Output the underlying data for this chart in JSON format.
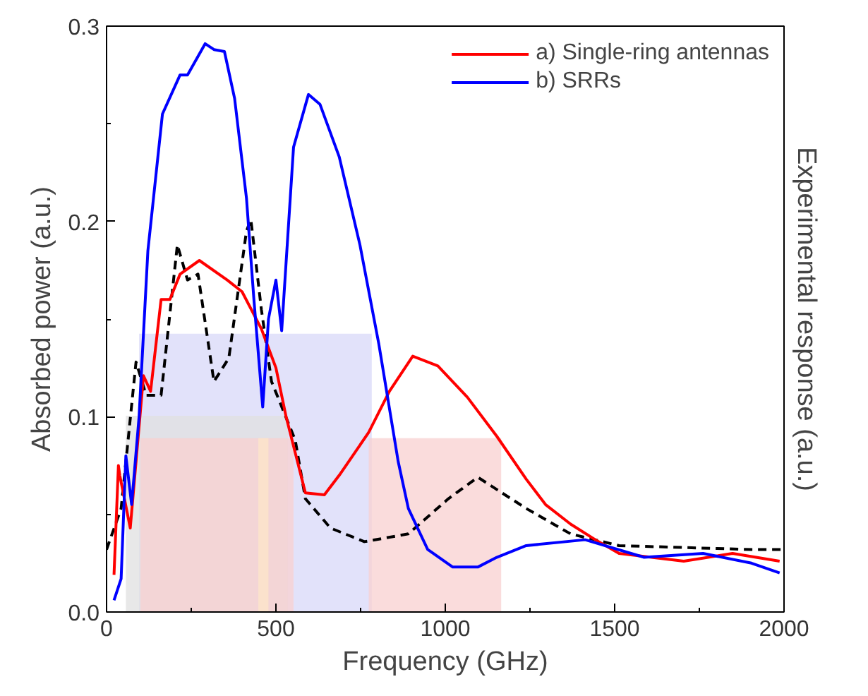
{
  "chart_data": {
    "type": "line",
    "xlabel": "Frequency (GHz)",
    "ylabel": "Absorbed power (a.u.)",
    "y2label": "Experimental response (a.u.)",
    "xlim": [
      0,
      2000
    ],
    "ylim": [
      0,
      0.3
    ],
    "xticks": [
      0,
      {
        "value": 250,
        "label": null
      },
      500,
      {
        "value": 750,
        "label": null
      },
      1000,
      {
        "value": 1250,
        "label": null
      },
      1500,
      {
        "value": 1750,
        "label": null
      },
      2000
    ],
    "yticks": [
      {
        "value": 0,
        "label": "0.0"
      },
      {
        "value": 0.05,
        "label": null
      },
      {
        "value": 0.1,
        "label": "0.1"
      },
      {
        "value": 0.15,
        "label": null
      },
      {
        "value": 0.2,
        "label": "0.2"
      },
      {
        "value": 0.25,
        "label": null
      },
      {
        "value": 0.3,
        "label": "0.3"
      }
    ],
    "legend": "top right",
    "grid": false,
    "series": [
      {
        "type": "area",
        "color": "#d8d8f8",
        "x": [
          96,
          96,
          783,
          783
        ],
        "values": [
          0,
          0.1425,
          0.1425,
          0
        ]
      },
      {
        "type": "area",
        "color": "#e0e0e0",
        "x": [
          57,
          57,
          535,
          535
        ],
        "values": [
          0,
          0.1005,
          0.1005,
          0
        ]
      },
      {
        "type": "area",
        "color": "#f8d0d0",
        "x": [
          100,
          100,
          552,
          552
        ],
        "values": [
          0,
          0.089,
          0.089,
          0
        ]
      },
      {
        "type": "area",
        "color": "#f8d0d0",
        "x": [
          774,
          774,
          1165,
          1165
        ],
        "values": [
          0,
          0.089,
          0.089,
          0
        ]
      },
      {
        "type": "area",
        "color": "#fde6c8",
        "x": [
          448,
          448,
          478,
          478
        ],
        "values": [
          0,
          0.089,
          0.089,
          0
        ]
      },
      {
        "color": "#000000",
        "line_style": "dashed",
        "x": [
          0,
          43,
          87,
          117,
          161,
          209,
          239,
          270,
          317,
          361,
          413,
          426,
          457,
          487,
          557,
          587,
          661,
          761,
          891,
          1009,
          1096,
          1239,
          1370,
          1513,
          1904,
          2000
        ],
        "values": [
          0.032,
          0.053,
          0.128,
          0.111,
          0.111,
          0.188,
          0.17,
          0.173,
          0.118,
          0.13,
          0.195,
          0.201,
          0.155,
          0.118,
          0.088,
          0.058,
          0.043,
          0.036,
          0.04,
          0.058,
          0.069,
          0.053,
          0.04,
          0.034,
          0.032,
          0.032
        ]
      },
      {
        "name": "a) Single-ring antennas",
        "color": "#ff0000",
        "x": [
          22,
          35,
          39,
          70,
          109,
          130,
          161,
          187,
          217,
          274,
          356,
          400,
          457,
          500,
          530,
          587,
          643,
          687,
          774,
          835,
          904,
          978,
          1065,
          1152,
          1239,
          1296,
          1370,
          1443,
          1513,
          1704,
          1848,
          1987
        ],
        "values": [
          0.019,
          0.075,
          0.07,
          0.043,
          0.121,
          0.113,
          0.16,
          0.16,
          0.173,
          0.18,
          0.17,
          0.164,
          0.145,
          0.125,
          0.1,
          0.061,
          0.06,
          0.07,
          0.092,
          0.113,
          0.131,
          0.126,
          0.11,
          0.09,
          0.068,
          0.055,
          0.045,
          0.037,
          0.03,
          0.026,
          0.03,
          0.026
        ]
      },
      {
        "name": "b) SRRs",
        "color": "#0000ff",
        "x": [
          22,
          43,
          57,
          74,
          96,
          122,
          165,
          217,
          239,
          291,
          317,
          348,
          378,
          413,
          435,
          461,
          478,
          500,
          517,
          552,
          596,
          630,
          687,
          748,
          804,
          861,
          891,
          948,
          1022,
          1096,
          1152,
          1239,
          1413,
          1587,
          1761,
          1904,
          1987
        ],
        "values": [
          0.006,
          0.017,
          0.08,
          0.055,
          0.1,
          0.185,
          0.255,
          0.275,
          0.275,
          0.291,
          0.288,
          0.287,
          0.263,
          0.212,
          0.16,
          0.105,
          0.15,
          0.17,
          0.144,
          0.238,
          0.265,
          0.26,
          0.233,
          0.188,
          0.137,
          0.077,
          0.053,
          0.032,
          0.023,
          0.023,
          0.028,
          0.034,
          0.037,
          0.028,
          0.03,
          0.025,
          0.02
        ]
      }
    ]
  }
}
